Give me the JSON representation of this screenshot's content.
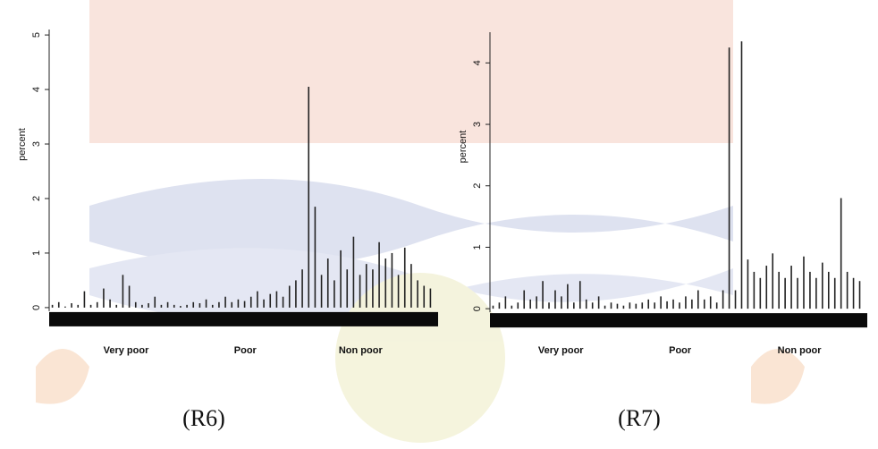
{
  "chart_data": [
    {
      "type": "bar",
      "y_label": "percent",
      "caption": "(R6)",
      "group_labels": [
        "Very poor",
        "Poor",
        "Non poor"
      ],
      "color": "#222222",
      "ylim": [
        -0.1,
        5.1
      ],
      "yticks": [
        0,
        1,
        2,
        3,
        4,
        5
      ],
      "values": [
        0.05,
        0.1,
        0.02,
        0.08,
        0.05,
        0.3,
        0.05,
        0.1,
        0.35,
        0.15,
        0.05,
        0.6,
        0.4,
        0.1,
        0.05,
        0.08,
        0.2,
        0.05,
        0.1,
        0.05,
        0.03,
        0.05,
        0.1,
        0.08,
        0.15,
        0.05,
        0.1,
        0.2,
        0.1,
        0.15,
        0.12,
        0.2,
        0.3,
        0.15,
        0.25,
        0.3,
        0.2,
        0.4,
        0.5,
        0.7,
        4.05,
        1.85,
        0.6,
        0.9,
        0.5,
        1.05,
        0.7,
        1.3,
        0.6,
        0.8,
        0.7,
        1.2,
        0.9,
        1.0,
        0.6,
        1.1,
        0.8,
        0.5,
        0.4,
        0.35
      ]
    },
    {
      "type": "bar",
      "y_label": "percent",
      "caption": "(R7)",
      "group_labels": [
        "Very poor",
        "Poor",
        "Non poor"
      ],
      "color": "#222222",
      "ylim": [
        -0.1,
        4.5
      ],
      "yticks": [
        0,
        1,
        2,
        3,
        4
      ],
      "values": [
        0.05,
        0.1,
        0.2,
        0.05,
        0.1,
        0.3,
        0.15,
        0.2,
        0.45,
        0.1,
        0.3,
        0.2,
        0.4,
        0.1,
        0.45,
        0.15,
        0.1,
        0.2,
        0.05,
        0.1,
        0.08,
        0.05,
        0.1,
        0.08,
        0.1,
        0.15,
        0.1,
        0.2,
        0.12,
        0.15,
        0.1,
        0.2,
        0.15,
        0.3,
        0.15,
        0.2,
        0.1,
        0.3,
        4.25,
        0.3,
        4.35,
        0.8,
        0.6,
        0.5,
        0.7,
        0.9,
        0.6,
        0.5,
        0.7,
        0.5,
        0.85,
        0.6,
        0.5,
        0.75,
        0.6,
        0.5,
        1.8,
        0.6,
        0.5,
        0.45
      ]
    }
  ]
}
